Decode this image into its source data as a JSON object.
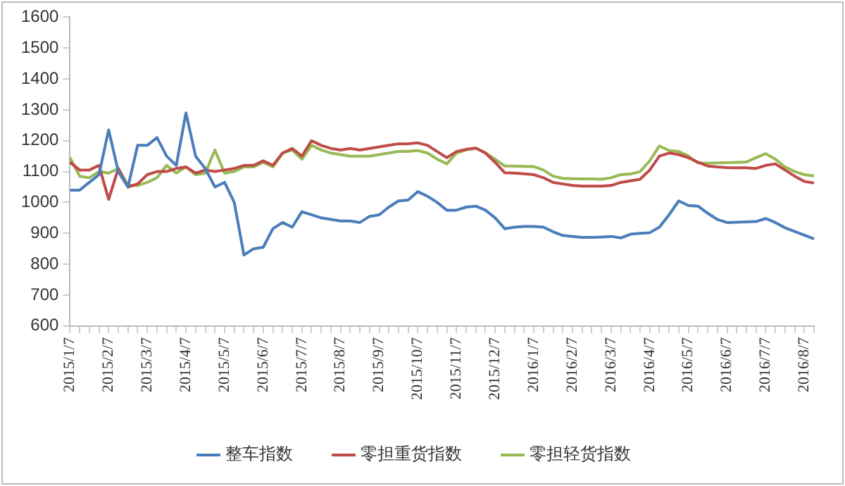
{
  "chart_data": {
    "type": "line",
    "categories": [
      "2015/1/7",
      null,
      null,
      null,
      "2015/2/7",
      null,
      null,
      null,
      "2015/3/7",
      null,
      null,
      null,
      "2015/4/7",
      null,
      null,
      null,
      "2015/5/7",
      null,
      null,
      null,
      "2015/6/7",
      null,
      null,
      null,
      "2015/7/7",
      null,
      null,
      null,
      "2015/8/7",
      null,
      null,
      null,
      "2015/9/7",
      null,
      null,
      null,
      "2015/10/7",
      null,
      null,
      null,
      "2015/11/7",
      null,
      null,
      null,
      "2015/12/7",
      null,
      null,
      null,
      "2016/1/7",
      null,
      null,
      null,
      "2016/2/7",
      null,
      null,
      null,
      "2016/3/7",
      null,
      null,
      null,
      "2016/4/7",
      null,
      null,
      null,
      "2016/5/7",
      null,
      null,
      null,
      "2016/6/7",
      null,
      null,
      null,
      "2016/7/7",
      null,
      null,
      null,
      "2016/8/7",
      null
    ],
    "series": [
      {
        "name": "整车指数",
        "color": "#4a7ebb",
        "values": [
          1040,
          1040,
          1065,
          1090,
          1235,
          1100,
          1050,
          1185,
          1185,
          1210,
          1150,
          1120,
          1290,
          1150,
          1110,
          1050,
          1065,
          1000,
          830,
          850,
          855,
          915,
          935,
          920,
          970,
          960,
          950,
          945,
          940,
          940,
          935,
          955,
          960,
          985,
          1005,
          1008,
          1035,
          1020,
          1000,
          975,
          975,
          985,
          988,
          975,
          950,
          915,
          920,
          922,
          922,
          920,
          905,
          893,
          890,
          887,
          887,
          888,
          890,
          885,
          897,
          900,
          902,
          920,
          960,
          1005,
          990,
          988,
          965,
          945,
          935,
          936,
          937,
          938,
          948,
          935,
          918,
          906,
          894,
          882
        ]
      },
      {
        "name": "零担重货指数",
        "color": "#be4b48",
        "values": [
          1130,
          1105,
          1105,
          1120,
          1010,
          1110,
          1050,
          1060,
          1090,
          1100,
          1100,
          1110,
          1115,
          1095,
          1105,
          1100,
          1105,
          1110,
          1120,
          1120,
          1135,
          1120,
          1160,
          1175,
          1150,
          1200,
          1185,
          1175,
          1170,
          1175,
          1170,
          1175,
          1180,
          1185,
          1190,
          1190,
          1193,
          1185,
          1165,
          1145,
          1165,
          1172,
          1176,
          1160,
          1130,
          1096,
          1095,
          1093,
          1090,
          1080,
          1065,
          1060,
          1055,
          1053,
          1053,
          1053,
          1055,
          1065,
          1070,
          1075,
          1105,
          1150,
          1160,
          1155,
          1145,
          1130,
          1118,
          1115,
          1113,
          1112,
          1112,
          1110,
          1120,
          1125,
          1105,
          1085,
          1068,
          1063
        ]
      },
      {
        "name": "零担轻货指数",
        "color": "#98b954",
        "values": [
          1145,
          1085,
          1080,
          1100,
          1095,
          1110,
          1055,
          1055,
          1065,
          1080,
          1120,
          1095,
          1115,
          1090,
          1095,
          1170,
          1095,
          1100,
          1115,
          1115,
          1130,
          1115,
          1160,
          1170,
          1140,
          1185,
          1170,
          1160,
          1155,
          1150,
          1150,
          1150,
          1155,
          1160,
          1165,
          1165,
          1168,
          1160,
          1140,
          1125,
          1160,
          1170,
          1176,
          1160,
          1140,
          1118,
          1118,
          1117,
          1116,
          1105,
          1085,
          1078,
          1077,
          1076,
          1076,
          1075,
          1080,
          1090,
          1092,
          1100,
          1135,
          1183,
          1168,
          1165,
          1150,
          1128,
          1127,
          1128,
          1129,
          1130,
          1131,
          1145,
          1158,
          1140,
          1115,
          1100,
          1090,
          1086
        ]
      }
    ],
    "ylim": [
      600,
      1600
    ],
    "yticks": [
      600,
      700,
      800,
      900,
      1000,
      1100,
      1200,
      1300,
      1400,
      1500,
      1600
    ],
    "grid": false,
    "legend": "bottom",
    "marker": "none"
  }
}
